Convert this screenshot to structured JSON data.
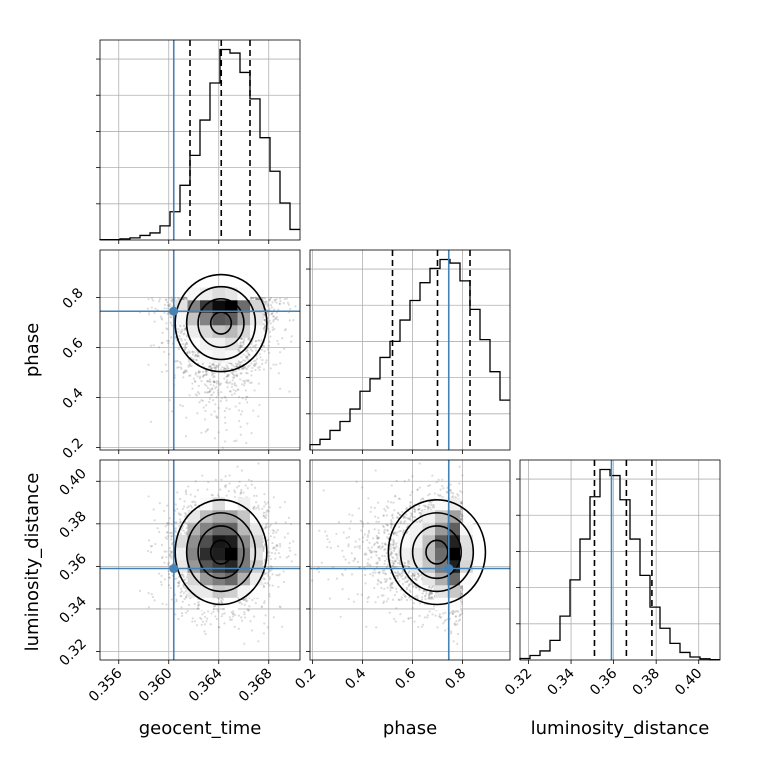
{
  "chart_data": {
    "type": "corner",
    "parameters": [
      "geocent_time",
      "phase",
      "luminosity_distance"
    ],
    "axis_labels": {
      "geocent_time": "geocent_time",
      "phase": "phase",
      "luminosity_distance": "luminosity_distance"
    },
    "ranges": {
      "geocent_time": [
        0.3545,
        0.3705
      ],
      "phase": [
        0.19,
        0.99
      ],
      "luminosity_distance": [
        0.316,
        0.41
      ]
    },
    "ticks": {
      "geocent_time": [
        "0.356",
        "0.360",
        "0.364",
        "0.368"
      ],
      "phase": [
        "0.2",
        "0.4",
        "0.6",
        "0.8"
      ],
      "luminosity_distance": [
        "0.32",
        "0.34",
        "0.36",
        "0.38",
        "0.40"
      ]
    },
    "truths": {
      "geocent_time": 0.3604,
      "phase": 0.745,
      "luminosity_distance": 0.359
    },
    "quantiles": {
      "geocent_time": [
        0.3617,
        0.3642,
        0.3665
      ],
      "phase": [
        0.52,
        0.7,
        0.83
      ],
      "luminosity_distance": [
        0.351,
        0.366,
        0.378
      ]
    },
    "truth_color": "#4682b4",
    "histograms": {
      "geocent_time": {
        "bin_edges": [
          0.3545,
          0.3553,
          0.3561,
          0.3569,
          0.3577,
          0.3585,
          0.3593,
          0.3601,
          0.3609,
          0.3617,
          0.3625,
          0.3633,
          0.3641,
          0.3649,
          0.3657,
          0.3665,
          0.3673,
          0.3681,
          0.3689,
          0.3697,
          0.3705
        ],
        "counts": [
          1,
          1,
          3,
          6,
          13,
          20,
          40,
          80,
          155,
          240,
          340,
          445,
          540,
          530,
          475,
          400,
          290,
          195,
          105,
          30
        ]
      },
      "phase": {
        "bin_edges": [
          0.19,
          0.23,
          0.27,
          0.31,
          0.35,
          0.39,
          0.43,
          0.47,
          0.51,
          0.55,
          0.59,
          0.63,
          0.67,
          0.71,
          0.75,
          0.79,
          0.83,
          0.87,
          0.91,
          0.95,
          0.99
        ],
        "counts": [
          15,
          30,
          55,
          80,
          115,
          165,
          200,
          260,
          305,
          365,
          420,
          470,
          510,
          535,
          525,
          475,
          395,
          310,
          220,
          140
        ]
      },
      "luminosity_distance": {
        "bin_edges": [
          0.316,
          0.3207,
          0.3254,
          0.3301,
          0.3348,
          0.3395,
          0.3442,
          0.3489,
          0.3536,
          0.3583,
          0.363,
          0.3677,
          0.3724,
          0.3771,
          0.3818,
          0.3865,
          0.3912,
          0.3959,
          0.4006,
          0.4053,
          0.41
        ],
        "counts": [
          5,
          15,
          30,
          65,
          145,
          265,
          400,
          540,
          630,
          610,
          530,
          400,
          280,
          175,
          105,
          55,
          25,
          10,
          4,
          1
        ]
      }
    },
    "grid": true
  }
}
